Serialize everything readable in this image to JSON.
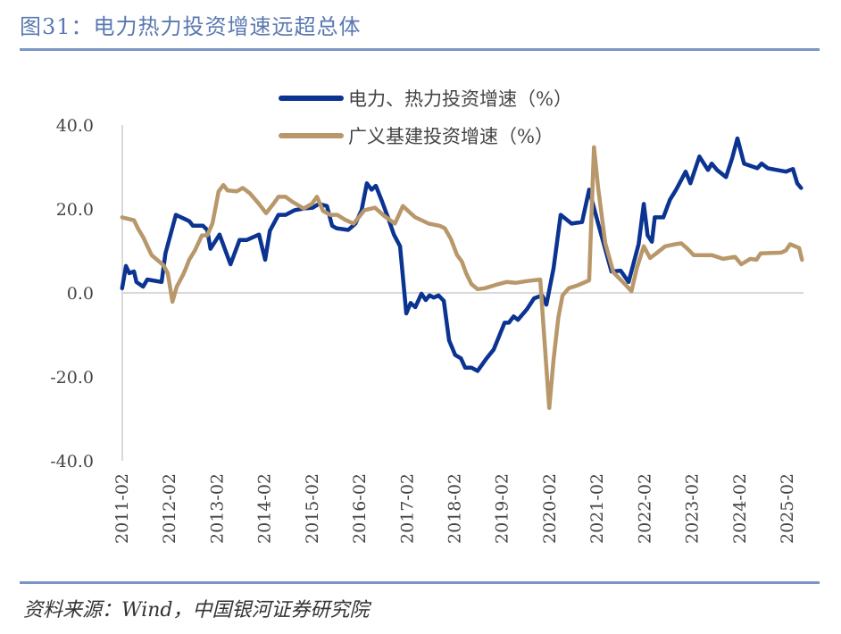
{
  "header": {
    "title": "图31：电力热力投资增速远超总体"
  },
  "footer": {
    "source": "资料来源：Wind，中国银河证券研究院"
  },
  "chart_data": {
    "type": "line",
    "title": "图31：电力热力投资增速远超总体",
    "xlabel": "",
    "ylabel": "",
    "ylim": [
      -40,
      40
    ],
    "yticks": [
      40,
      20,
      0,
      -20,
      -40
    ],
    "ytick_labels": [
      "40.0",
      "20.0",
      "0.0",
      "-20.0",
      "-40.0"
    ],
    "xlim": [
      2011.083,
      2025.083
    ],
    "xtick_labels": [
      "2011-02",
      "2012-02",
      "2013-02",
      "2014-02",
      "2015-02",
      "2016-02",
      "2017-02",
      "2018-02",
      "2019-02",
      "2020-02",
      "2021-02",
      "2022-02",
      "2023-02",
      "2024-02",
      "2025-02"
    ],
    "legend_position": "top-center",
    "grid": false,
    "series": [
      {
        "name": "电力、热力投资增速（%）",
        "color": "#0b3391",
        "points": [
          [
            2011.08,
            1.1
          ],
          [
            2011.16,
            6.4
          ],
          [
            2011.23,
            4.7
          ],
          [
            2011.33,
            5.1
          ],
          [
            2011.38,
            2.6
          ],
          [
            2011.52,
            1.5
          ],
          [
            2011.61,
            3.2
          ],
          [
            2011.91,
            2.6
          ],
          [
            2011.99,
            9.4
          ],
          [
            2012.21,
            18.6
          ],
          [
            2012.42,
            17.5
          ],
          [
            2012.49,
            17.1
          ],
          [
            2012.57,
            16.0
          ],
          [
            2012.78,
            16.0
          ],
          [
            2012.87,
            15.0
          ],
          [
            2012.94,
            10.5
          ],
          [
            2013.13,
            13.9
          ],
          [
            2013.36,
            6.8
          ],
          [
            2013.55,
            12.6
          ],
          [
            2013.7,
            12.6
          ],
          [
            2013.96,
            13.9
          ],
          [
            2014.09,
            7.9
          ],
          [
            2014.19,
            14.8
          ],
          [
            2014.37,
            18.6
          ],
          [
            2014.52,
            18.6
          ],
          [
            2014.71,
            19.7
          ],
          [
            2014.9,
            20.1
          ],
          [
            2015.09,
            20.3
          ],
          [
            2015.22,
            21.2
          ],
          [
            2015.39,
            20.7
          ],
          [
            2015.5,
            16.0
          ],
          [
            2015.59,
            15.4
          ],
          [
            2015.84,
            15.0
          ],
          [
            2015.99,
            16.5
          ],
          [
            2016.12,
            19.7
          ],
          [
            2016.23,
            26.1
          ],
          [
            2016.33,
            24.6
          ],
          [
            2016.42,
            25.5
          ],
          [
            2016.55,
            21.8
          ],
          [
            2016.69,
            17.5
          ],
          [
            2016.8,
            13.9
          ],
          [
            2016.93,
            11.1
          ],
          [
            2017.06,
            -4.9
          ],
          [
            2017.15,
            -2.4
          ],
          [
            2017.25,
            -3.4
          ],
          [
            2017.38,
            -0.2
          ],
          [
            2017.47,
            -1.7
          ],
          [
            2017.55,
            -0.6
          ],
          [
            2017.64,
            -1.1
          ],
          [
            2017.74,
            -0.6
          ],
          [
            2017.85,
            -1.9
          ],
          [
            2017.96,
            -11.3
          ],
          [
            2018.09,
            -14.8
          ],
          [
            2018.21,
            -15.6
          ],
          [
            2018.3,
            -17.8
          ],
          [
            2018.43,
            -17.8
          ],
          [
            2018.56,
            -18.6
          ],
          [
            2018.75,
            -15.6
          ],
          [
            2018.9,
            -13.5
          ],
          [
            2019.13,
            -7.1
          ],
          [
            2019.22,
            -7.1
          ],
          [
            2019.32,
            -5.6
          ],
          [
            2019.41,
            -6.4
          ],
          [
            2019.6,
            -3.9
          ],
          [
            2019.75,
            -1.3
          ],
          [
            2019.92,
            -0.6
          ],
          [
            2020.01,
            -2.8
          ],
          [
            2020.16,
            5.8
          ],
          [
            2020.31,
            18.6
          ],
          [
            2020.54,
            16.5
          ],
          [
            2020.76,
            16.9
          ],
          [
            2020.91,
            24.6
          ],
          [
            2021.1,
            16.5
          ],
          [
            2021.38,
            5.1
          ],
          [
            2021.57,
            5.3
          ],
          [
            2021.74,
            2.6
          ],
          [
            2021.95,
            11.6
          ],
          [
            2022.06,
            21.2
          ],
          [
            2022.14,
            13.7
          ],
          [
            2022.23,
            12.2
          ],
          [
            2022.29,
            18.0
          ],
          [
            2022.47,
            18.0
          ],
          [
            2022.61,
            22.2
          ],
          [
            2022.74,
            24.6
          ],
          [
            2022.94,
            28.9
          ],
          [
            2023.04,
            26.1
          ],
          [
            2023.23,
            32.5
          ],
          [
            2023.41,
            29.3
          ],
          [
            2023.49,
            30.8
          ],
          [
            2023.6,
            29.3
          ],
          [
            2023.79,
            27.6
          ],
          [
            2023.92,
            32.1
          ],
          [
            2024.03,
            36.8
          ],
          [
            2024.17,
            30.8
          ],
          [
            2024.45,
            29.7
          ],
          [
            2024.54,
            30.8
          ],
          [
            2024.67,
            29.7
          ],
          [
            2025.05,
            28.9
          ],
          [
            2025.2,
            29.5
          ],
          [
            2025.29,
            26.1
          ],
          [
            2025.37,
            25.0
          ]
        ]
      },
      {
        "name": "广义基建投资增速（%）",
        "color": "#b8976a",
        "points": [
          [
            2011.08,
            18.0
          ],
          [
            2011.33,
            17.3
          ],
          [
            2011.42,
            15.2
          ],
          [
            2011.52,
            13.3
          ],
          [
            2011.7,
            9.0
          ],
          [
            2011.95,
            6.6
          ],
          [
            2012.04,
            4.7
          ],
          [
            2012.14,
            -2.1
          ],
          [
            2012.23,
            1.5
          ],
          [
            2012.36,
            4.3
          ],
          [
            2012.42,
            5.8
          ],
          [
            2012.49,
            7.9
          ],
          [
            2012.61,
            10.1
          ],
          [
            2012.76,
            13.7
          ],
          [
            2012.87,
            13.7
          ],
          [
            2012.98,
            16.5
          ],
          [
            2013.11,
            24.2
          ],
          [
            2013.21,
            25.7
          ],
          [
            2013.3,
            24.4
          ],
          [
            2013.49,
            24.2
          ],
          [
            2013.62,
            25.0
          ],
          [
            2013.77,
            23.7
          ],
          [
            2013.96,
            21.2
          ],
          [
            2014.11,
            19.0
          ],
          [
            2014.26,
            21.2
          ],
          [
            2014.37,
            22.9
          ],
          [
            2014.52,
            22.9
          ],
          [
            2014.65,
            21.8
          ],
          [
            2014.9,
            20.1
          ],
          [
            2015.07,
            21.2
          ],
          [
            2015.18,
            22.9
          ],
          [
            2015.31,
            19.5
          ],
          [
            2015.46,
            18.6
          ],
          [
            2015.61,
            18.6
          ],
          [
            2015.76,
            17.5
          ],
          [
            2015.95,
            16.5
          ],
          [
            2016.06,
            18.0
          ],
          [
            2016.18,
            19.7
          ],
          [
            2016.4,
            20.3
          ],
          [
            2016.59,
            18.4
          ],
          [
            2016.82,
            16.5
          ],
          [
            2016.99,
            20.7
          ],
          [
            2017.12,
            19.3
          ],
          [
            2017.25,
            18.0
          ],
          [
            2017.53,
            16.5
          ],
          [
            2017.76,
            16.0
          ],
          [
            2017.87,
            15.4
          ],
          [
            2018.0,
            12.8
          ],
          [
            2018.13,
            9.0
          ],
          [
            2018.23,
            7.5
          ],
          [
            2018.32,
            4.7
          ],
          [
            2018.43,
            2.1
          ],
          [
            2018.56,
            0.9
          ],
          [
            2018.71,
            1.1
          ],
          [
            2018.94,
            1.9
          ],
          [
            2019.17,
            2.6
          ],
          [
            2019.37,
            2.4
          ],
          [
            2019.6,
            2.8
          ],
          [
            2019.88,
            3.2
          ],
          [
            2020.01,
            -17.8
          ],
          [
            2020.07,
            -27.4
          ],
          [
            2020.16,
            -16.0
          ],
          [
            2020.26,
            -6.0
          ],
          [
            2020.35,
            -0.6
          ],
          [
            2020.48,
            1.1
          ],
          [
            2020.69,
            1.9
          ],
          [
            2020.91,
            3.0
          ],
          [
            2021.01,
            34.7
          ],
          [
            2021.1,
            25.0
          ],
          [
            2021.25,
            11.8
          ],
          [
            2021.42,
            4.9
          ],
          [
            2021.66,
            2.1
          ],
          [
            2021.8,
            0.4
          ],
          [
            2021.91,
            5.8
          ],
          [
            2022.06,
            11.1
          ],
          [
            2022.19,
            8.3
          ],
          [
            2022.32,
            9.4
          ],
          [
            2022.51,
            11.1
          ],
          [
            2022.72,
            11.6
          ],
          [
            2022.85,
            11.8
          ],
          [
            2022.98,
            10.5
          ],
          [
            2023.11,
            9.0
          ],
          [
            2023.49,
            9.0
          ],
          [
            2023.73,
            8.1
          ],
          [
            2023.98,
            8.6
          ],
          [
            2024.11,
            6.8
          ],
          [
            2024.3,
            8.1
          ],
          [
            2024.43,
            7.9
          ],
          [
            2024.52,
            9.4
          ],
          [
            2024.95,
            9.6
          ],
          [
            2025.05,
            10.1
          ],
          [
            2025.14,
            11.6
          ],
          [
            2025.33,
            10.7
          ],
          [
            2025.39,
            7.9
          ]
        ]
      }
    ]
  }
}
